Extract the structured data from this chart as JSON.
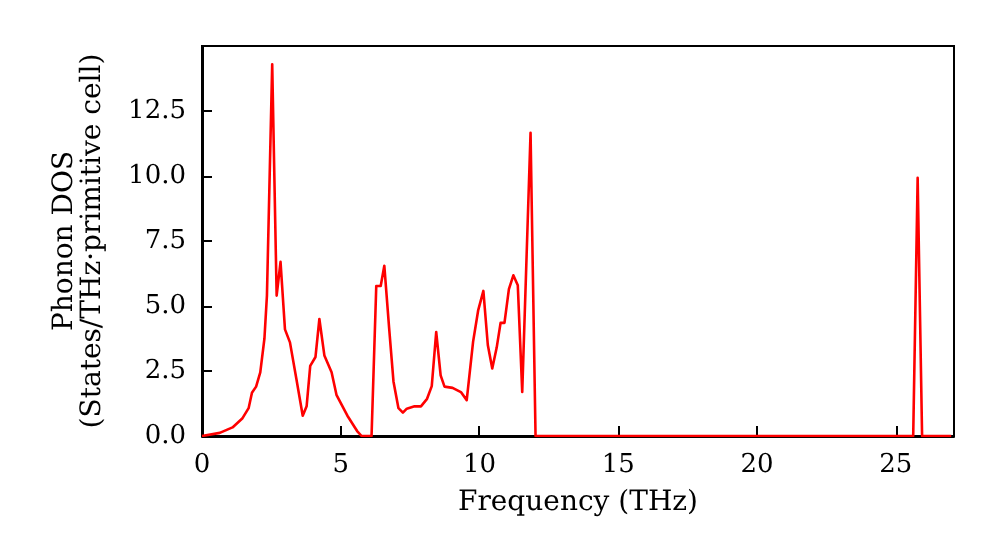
{
  "chart_data": {
    "type": "line",
    "xlabel": "Frequency (THz)",
    "ylabel": "Phonon DOS\n(States/THz·primitive cell)",
    "series": [
      {
        "color": "#ff0000",
        "x": [
          0,
          0.64,
          1.1,
          1.45,
          1.68,
          1.8,
          1.95,
          2.1,
          2.25,
          2.34,
          2.53,
          2.69,
          2.83,
          2.99,
          3.17,
          3.4,
          3.63,
          3.77,
          3.9,
          4.09,
          4.23,
          4.41,
          4.67,
          4.85,
          5.24,
          5.59,
          5.75,
          6.11,
          6.28,
          6.44,
          6.57,
          6.74,
          6.9,
          7.08,
          7.24,
          7.38,
          7.66,
          7.89,
          8.11,
          8.28,
          8.44,
          8.6,
          8.74,
          9.03,
          9.33,
          9.54,
          9.77,
          9.95,
          10.14,
          10.3,
          10.46,
          10.62,
          10.76,
          10.9,
          11.06,
          11.22,
          11.38,
          11.54,
          11.84,
          12.02,
          25.63,
          25.79,
          25.95,
          27
        ],
        "values": [
          0,
          0.12,
          0.33,
          0.67,
          1.07,
          1.66,
          1.9,
          2.45,
          3.75,
          5.4,
          14.3,
          5.4,
          6.7,
          4.1,
          3.6,
          2.2,
          0.78,
          1.14,
          2.7,
          3.04,
          4.5,
          3.1,
          2.45,
          1.57,
          0.78,
          0.19,
          0,
          0,
          5.77,
          5.77,
          6.55,
          4.2,
          2.1,
          1.07,
          0.9,
          1.05,
          1.14,
          1.14,
          1.43,
          1.92,
          4.0,
          2.33,
          1.9,
          1.85,
          1.69,
          1.38,
          3.63,
          4.82,
          5.58,
          3.5,
          2.6,
          3.4,
          4.35,
          4.35,
          5.65,
          6.18,
          5.8,
          1.69,
          11.66,
          0,
          0,
          9.93,
          0,
          0
        ]
      }
    ],
    "xlim": [
      0,
      27.1
    ],
    "xticks": [
      0,
      5,
      10,
      15,
      20,
      25
    ],
    "ylim": [
      0,
      15
    ],
    "yticks": [
      {
        "value": 0,
        "label": "0.0"
      },
      {
        "value": 2.5,
        "label": "2.5"
      },
      {
        "value": 5,
        "label": "5.0"
      },
      {
        "value": 7.5,
        "label": "7.5"
      },
      {
        "value": 10,
        "label": "10.0"
      },
      {
        "value": 12.5,
        "label": "12.5"
      }
    ],
    "grid": false,
    "marker": "none",
    "line_style": "solid"
  }
}
